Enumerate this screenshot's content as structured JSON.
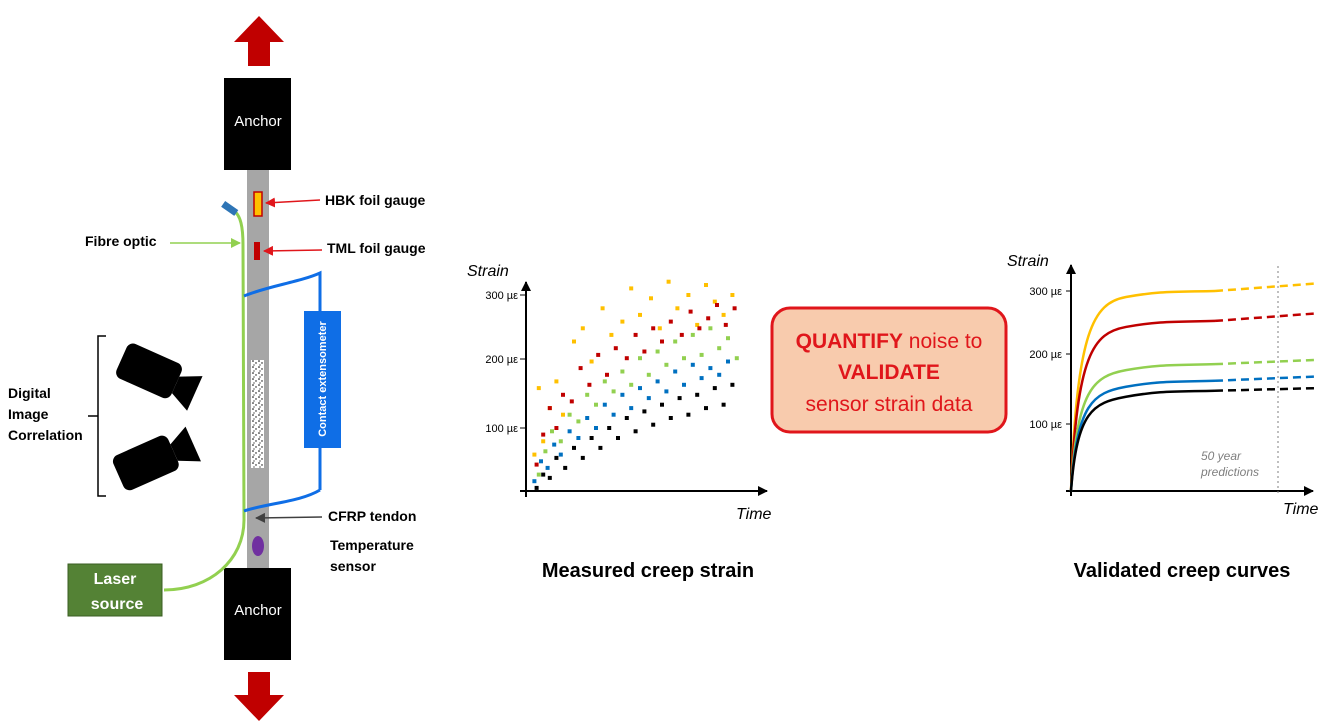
{
  "rig": {
    "anchor_top": "Anchor",
    "anchor_bottom": "Anchor",
    "hbk_gauge": "HBK foil gauge",
    "tml_gauge": "TML foil gauge",
    "fibre_optic": "Fibre optic",
    "dic": [
      "Digital",
      "Image",
      "Correlation"
    ],
    "extensometer": "Contact extensometer",
    "cfrp_tendon": "CFRP tendon",
    "temperature_sensor": [
      "Temperature",
      "sensor"
    ],
    "laser_source": [
      "Laser",
      "source"
    ]
  },
  "center_box": {
    "line1_bold": "QUANTIFY",
    "line1_rest": " noise to",
    "line2_bold": "VALIDATE",
    "line3": "sensor strain data"
  },
  "prediction_note": [
    "50 year",
    "predictions"
  ],
  "colors": {
    "arrow": "#c00000",
    "anchor": "#000000",
    "tendon": "#a6a6a6",
    "fibre": "#92d050",
    "extensometer": "#0f6ee6",
    "laser": "#548235",
    "box_fill": "#f8cbad",
    "box_border": "#e0161b",
    "series": [
      "#ffc000",
      "#c00000",
      "#92d050",
      "#0070c0",
      "#000000"
    ]
  },
  "chart_data": [
    {
      "type": "scatter",
      "title": "Measured creep strain",
      "xlabel": "Time",
      "ylabel": "Strain",
      "yticks": [
        "100 µε",
        "200 µε",
        "300 µε"
      ],
      "ylim": [
        0,
        330
      ],
      "xlim": [
        0,
        1
      ],
      "series": [
        {
          "color": "#ffc000",
          "x": [
            0.02,
            0.04,
            0.06,
            0.09,
            0.12,
            0.15,
            0.2,
            0.24,
            0.28,
            0.33,
            0.37,
            0.42,
            0.46,
            0.5,
            0.55,
            0.59,
            0.63,
            0.67,
            0.72,
            0.76,
            0.8,
            0.84,
            0.88,
            0.92
          ],
          "y": [
            60,
            160,
            80,
            130,
            170,
            120,
            230,
            250,
            200,
            280,
            240,
            260,
            310,
            270,
            295,
            250,
            320,
            280,
            300,
            255,
            315,
            290,
            270,
            300
          ]
        },
        {
          "color": "#c00000",
          "x": [
            0.03,
            0.06,
            0.09,
            0.12,
            0.15,
            0.19,
            0.23,
            0.27,
            0.31,
            0.35,
            0.39,
            0.44,
            0.48,
            0.52,
            0.56,
            0.6,
            0.64,
            0.69,
            0.73,
            0.77,
            0.81,
            0.85,
            0.89,
            0.93
          ],
          "y": [
            45,
            90,
            130,
            100,
            150,
            140,
            190,
            165,
            210,
            180,
            220,
            205,
            240,
            215,
            250,
            230,
            260,
            240,
            275,
            250,
            265,
            285,
            255,
            280
          ]
        },
        {
          "color": "#92d050",
          "x": [
            0.04,
            0.07,
            0.1,
            0.14,
            0.18,
            0.22,
            0.26,
            0.3,
            0.34,
            0.38,
            0.42,
            0.46,
            0.5,
            0.54,
            0.58,
            0.62,
            0.66,
            0.7,
            0.74,
            0.78,
            0.82,
            0.86,
            0.9,
            0.94
          ],
          "y": [
            30,
            65,
            95,
            80,
            120,
            110,
            150,
            135,
            170,
            155,
            185,
            165,
            205,
            180,
            215,
            195,
            230,
            205,
            240,
            210,
            250,
            220,
            235,
            205
          ]
        },
        {
          "color": "#0070c0",
          "x": [
            0.02,
            0.05,
            0.08,
            0.11,
            0.14,
            0.18,
            0.22,
            0.26,
            0.3,
            0.34,
            0.38,
            0.42,
            0.46,
            0.5,
            0.54,
            0.58,
            0.62,
            0.66,
            0.7,
            0.74,
            0.78,
            0.82,
            0.86,
            0.9
          ],
          "y": [
            20,
            50,
            40,
            75,
            60,
            95,
            85,
            115,
            100,
            135,
            120,
            150,
            130,
            160,
            145,
            170,
            155,
            185,
            165,
            195,
            175,
            190,
            180,
            200
          ]
        },
        {
          "color": "#000000",
          "x": [
            0.03,
            0.06,
            0.09,
            0.12,
            0.16,
            0.2,
            0.24,
            0.28,
            0.32,
            0.36,
            0.4,
            0.44,
            0.48,
            0.52,
            0.56,
            0.6,
            0.64,
            0.68,
            0.72,
            0.76,
            0.8,
            0.84,
            0.88,
            0.92
          ],
          "y": [
            10,
            30,
            25,
            55,
            40,
            70,
            55,
            85,
            70,
            100,
            85,
            115,
            95,
            125,
            105,
            135,
            115,
            145,
            120,
            150,
            130,
            160,
            135,
            165
          ]
        }
      ]
    },
    {
      "type": "line",
      "title": "Validated creep curves",
      "xlabel": "Time",
      "ylabel": "Strain",
      "yticks": [
        "100 µε",
        "200 µε",
        "300 µε"
      ],
      "ylim": [
        0,
        330
      ],
      "xlim": [
        0,
        1
      ],
      "series": [
        {
          "color": "#ffc000",
          "y_final": 300,
          "y_prediction": 320
        },
        {
          "color": "#c00000",
          "y_final": 255,
          "y_prediction": 275
        },
        {
          "color": "#92d050",
          "y_final": 190,
          "y_prediction": 200
        },
        {
          "color": "#0070c0",
          "y_final": 165,
          "y_prediction": 175
        },
        {
          "color": "#000000",
          "y_final": 150,
          "y_prediction": 155
        }
      ]
    }
  ]
}
